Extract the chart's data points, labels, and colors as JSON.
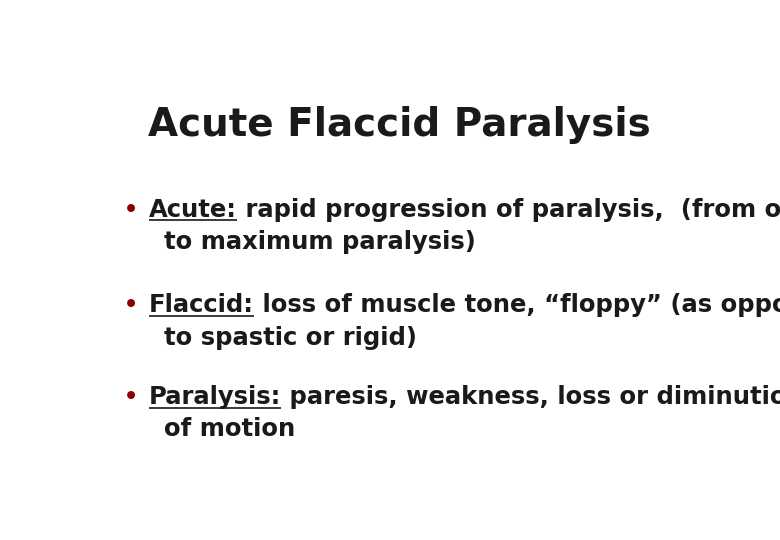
{
  "title": "Acute Flaccid Paralysis",
  "title_fontsize": 28,
  "title_color": "#1a1a1a",
  "background_color": "#ffffff",
  "bullet_color": "#8b0000",
  "text_color": "#1a1a1a",
  "bullet_fontsize": 17.5,
  "figsize": [
    7.8,
    5.4
  ],
  "dpi": 100,
  "bullets": [
    {
      "keyword": "Acute:",
      "line1": " rapid progression of paralysis,  (from onset",
      "line2": "to maximum paralysis)"
    },
    {
      "keyword": "Flaccid:",
      "line1": " loss of muscle tone, “floppy” (as opposed",
      "line2": "to spastic or rigid)"
    },
    {
      "keyword": "Paralysis:",
      "line1": " paresis, weakness, loss or diminution",
      "line2": "of motion"
    }
  ]
}
